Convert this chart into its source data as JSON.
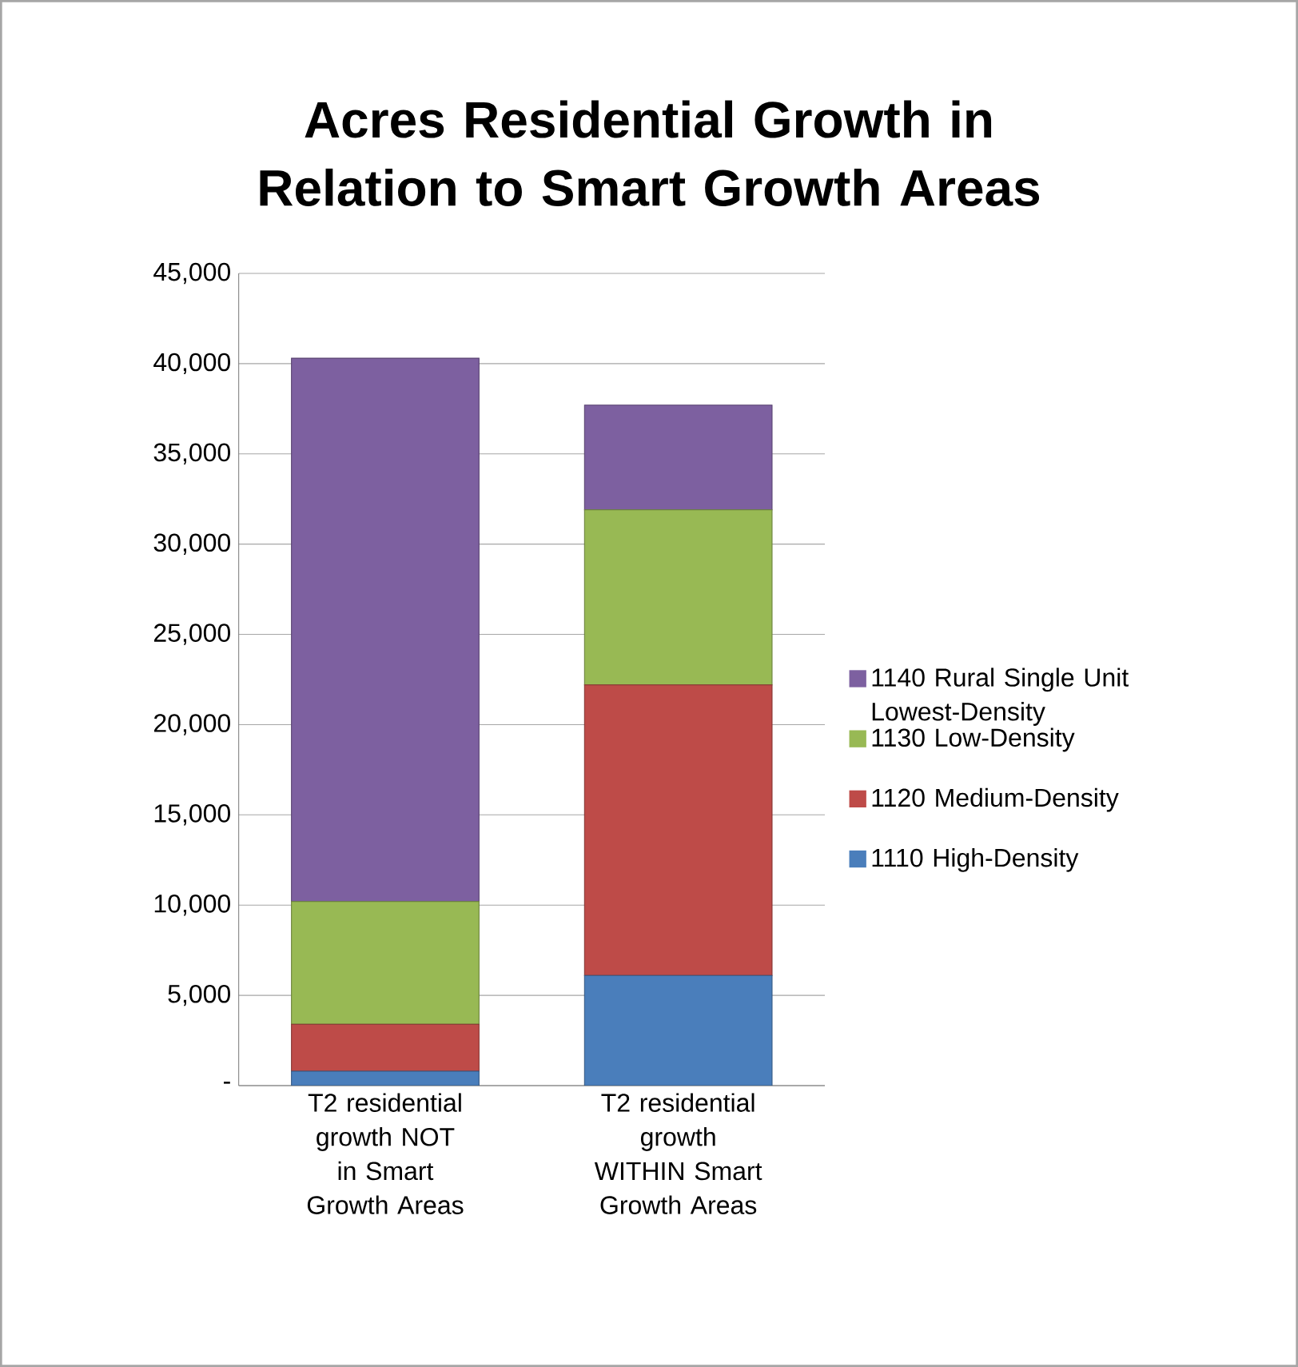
{
  "chart_data": {
    "type": "bar",
    "stacked": true,
    "title": "Acres Residential Growth in Relation to Smart Growth Areas",
    "categories": [
      "T2 residential growth NOT in Smart Growth Areas",
      "T2 residential growth WITHIN Smart Growth Areas"
    ],
    "series": [
      {
        "name": "1110 High-Density",
        "color": "#4a7ebb",
        "values": [
          800,
          6100
        ]
      },
      {
        "name": "1120 Medium-Density",
        "color": "#be4b48",
        "values": [
          2600,
          16100
        ]
      },
      {
        "name": "1130 Low-Density",
        "color": "#98b954",
        "values": [
          6800,
          9700
        ]
      },
      {
        "name": "1140 Rural Single Unit Lowest-Density",
        "color": "#7d60a0",
        "values": [
          30100,
          5800
        ]
      }
    ],
    "ylim": [
      0,
      45000
    ],
    "yticks": [
      {
        "value": 0,
        "label": "-"
      },
      {
        "value": 5000,
        "label": "5,000"
      },
      {
        "value": 10000,
        "label": "10,000"
      },
      {
        "value": 15000,
        "label": "15,000"
      },
      {
        "value": 20000,
        "label": "20,000"
      },
      {
        "value": 25000,
        "label": "25,000"
      },
      {
        "value": 30000,
        "label": "30,000"
      },
      {
        "value": 35000,
        "label": "35,000"
      },
      {
        "value": 40000,
        "label": "40,000"
      },
      {
        "value": 45000,
        "label": "45,000"
      }
    ],
    "grid": "y",
    "legend": "right"
  }
}
